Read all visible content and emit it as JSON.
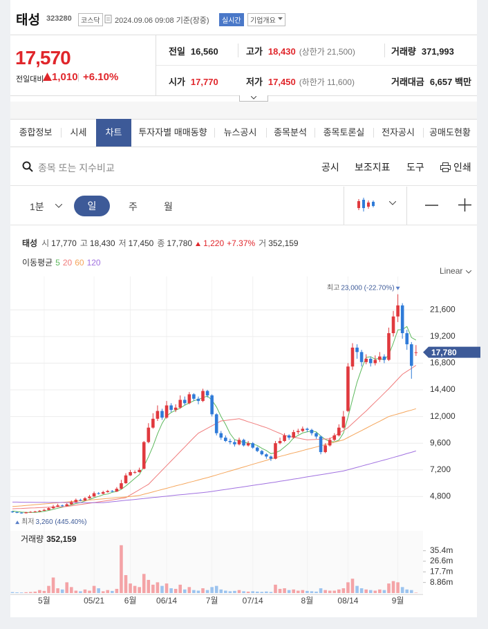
{
  "header": {
    "name": "태성",
    "code": "323280",
    "market": "코스닥",
    "timestamp": "2024.09.06 09:08 기준(장중)",
    "realtime": "실시간",
    "company_info": "기업개요"
  },
  "quote": {
    "price": "17,570",
    "change_label": "전일대비",
    "change": "1,010",
    "change_pct": "+6.10%",
    "stats": [
      [
        {
          "label": "전일",
          "value": "16,560",
          "color": "#222222"
        },
        {
          "label": "고가",
          "value": "18,430",
          "extra": "(상한가 21,500)",
          "color": "#e0262b"
        },
        {
          "label": "거래량",
          "value": "371,993",
          "color": "#222222"
        }
      ],
      [
        {
          "label": "시가",
          "value": "17,770",
          "color": "#e0262b"
        },
        {
          "label": "저가",
          "value": "17,450",
          "extra": "(하한가 11,600)",
          "color": "#e0262b"
        },
        {
          "label": "거래대금",
          "value": "6,657 백만",
          "color": "#222222"
        }
      ]
    ]
  },
  "tabs": [
    {
      "label": "종합정보"
    },
    {
      "label": "시세"
    },
    {
      "label": "차트",
      "selected": true
    },
    {
      "label": "투자자별 매매동향"
    },
    {
      "label": "뉴스공시"
    },
    {
      "label": "종목분석"
    },
    {
      "label": "종목토론실"
    },
    {
      "label": "전자공시"
    },
    {
      "label": "공매도현황"
    }
  ],
  "search": {
    "placeholder": "종목 또는 지수비교",
    "tools": [
      "공시",
      "보조지표",
      "도구",
      "인쇄"
    ]
  },
  "periods": [
    {
      "label": "1분"
    },
    {
      "label": "일",
      "selected": true
    },
    {
      "label": "주"
    },
    {
      "label": "월"
    }
  ],
  "chart_info": {
    "name": "태성",
    "items": [
      {
        "label": "시",
        "value": "17,770"
      },
      {
        "label": "고",
        "value": "18,430"
      },
      {
        "label": "저",
        "value": "17,450"
      },
      {
        "label": "종",
        "value": "17,780"
      }
    ],
    "change": "1,220",
    "change_pct": "+7.37%",
    "volume_label": "거",
    "volume": "352,159",
    "ma_label": "이동평균",
    "scale": "Linear"
  },
  "chart_data": {
    "type": "candlestick",
    "categories": [
      null,
      null,
      null,
      null,
      null,
      null,
      null,
      "5월",
      null,
      null,
      null,
      null,
      null,
      null,
      null,
      null,
      null,
      null,
      "05/21",
      null,
      null,
      null,
      null,
      null,
      null,
      null,
      "6월",
      null,
      null,
      null,
      null,
      null,
      null,
      null,
      "06/14",
      null,
      null,
      null,
      null,
      null,
      null,
      null,
      null,
      null,
      "7월",
      null,
      null,
      null,
      null,
      null,
      null,
      null,
      null,
      "07/14",
      null,
      null,
      null,
      null,
      null,
      null,
      null,
      null,
      null,
      null,
      null,
      "8월",
      null,
      null,
      null,
      null,
      null,
      null,
      null,
      null,
      "08/14",
      null,
      null,
      null,
      null,
      null,
      null,
      null,
      null,
      null,
      null,
      "9월",
      null,
      null,
      null,
      null
    ],
    "open": [
      3450,
      3400,
      3350,
      3300,
      3380,
      3420,
      3450,
      3520,
      3600,
      3750,
      3900,
      4000,
      3950,
      4100,
      4300,
      4500,
      4450,
      4650,
      4800,
      5100,
      5050,
      5200,
      5300,
      5250,
      5500,
      6000,
      6700,
      7000,
      7000,
      7300,
      9700,
      11000,
      11800,
      12500,
      11900,
      13000,
      12600,
      12800,
      13500,
      13200,
      14000,
      13600,
      13400,
      14300,
      13900,
      12200,
      10500,
      10100,
      9800,
      9700,
      9500,
      9900,
      9400,
      9600,
      9200,
      8900,
      8600,
      8400,
      8200,
      9600,
      9800,
      10300,
      10100,
      10600,
      10700,
      10900,
      10800,
      10500,
      10200,
      8800,
      9400,
      9900,
      10300,
      11000,
      12500,
      16500,
      18200,
      17800,
      16900,
      17200,
      16800,
      17100,
      17400,
      17100,
      19500,
      21000,
      22000,
      19500,
      18500,
      17770
    ],
    "high": [
      3500,
      3450,
      3400,
      3420,
      3480,
      3520,
      3580,
      3680,
      3820,
      4050,
      4150,
      4080,
      4200,
      4450,
      4620,
      4600,
      4750,
      4950,
      5250,
      5200,
      5320,
      5400,
      5380,
      5650,
      6300,
      6900,
      7200,
      7150,
      7400,
      9800,
      11400,
      12300,
      13000,
      12700,
      13400,
      13200,
      13100,
      13900,
      13800,
      14200,
      14100,
      13800,
      14500,
      14400,
      14000,
      12300,
      10700,
      10300,
      10000,
      9900,
      10100,
      10000,
      9800,
      9700,
      9300,
      9000,
      8700,
      8500,
      9800,
      10100,
      10500,
      10400,
      10800,
      10900,
      11100,
      11000,
      10900,
      10600,
      10300,
      9600,
      10100,
      10500,
      11300,
      12500,
      16800,
      18600,
      18500,
      18000,
      17600,
      17400,
      17500,
      17800,
      17600,
      20000,
      21500,
      23000,
      22200,
      19800,
      18700,
      18430
    ],
    "low": [
      3330,
      3300,
      3260,
      3280,
      3350,
      3400,
      3420,
      3500,
      3580,
      3700,
      3850,
      3880,
      3920,
      4050,
      4250,
      4380,
      4400,
      4600,
      4780,
      4980,
      5000,
      5150,
      5180,
      5220,
      5450,
      5950,
      6650,
      6850,
      6950,
      7250,
      9600,
      10900,
      11600,
      11700,
      11800,
      12400,
      12400,
      12700,
      13000,
      13100,
      13400,
      13100,
      13300,
      13700,
      12000,
      10300,
      9900,
      9700,
      9500,
      9300,
      9400,
      9300,
      9300,
      9100,
      8800,
      8500,
      8200,
      8000,
      8150,
      9500,
      9700,
      9900,
      10000,
      10400,
      10600,
      10600,
      10300,
      10000,
      8600,
      8700,
      9300,
      9800,
      10200,
      10900,
      12400,
      16200,
      17200,
      16500,
      16700,
      16500,
      16600,
      16900,
      16800,
      17000,
      19200,
      20500,
      19000,
      18000,
      15400,
      17450
    ],
    "close": [
      3400,
      3350,
      3300,
      3380,
      3420,
      3450,
      3520,
      3600,
      3750,
      3900,
      4000,
      3950,
      4100,
      4300,
      4500,
      4450,
      4650,
      4800,
      5100,
      5050,
      5200,
      5300,
      5250,
      5500,
      6000,
      6700,
      7000,
      7000,
      7200,
      9700,
      11000,
      11800,
      12500,
      11900,
      13000,
      12600,
      12800,
      13500,
      13200,
      14000,
      13600,
      13400,
      14300,
      13900,
      12200,
      10500,
      10100,
      9800,
      9700,
      9500,
      9900,
      9400,
      9600,
      9200,
      8900,
      8600,
      8400,
      8200,
      9600,
      9800,
      10300,
      10100,
      10600,
      10700,
      10900,
      10800,
      10500,
      10200,
      8800,
      9400,
      9900,
      10300,
      11000,
      12000,
      16500,
      18200,
      17800,
      16900,
      17200,
      16800,
      17100,
      17400,
      17100,
      19500,
      21000,
      22000,
      19500,
      18500,
      16560,
      17780
    ],
    "up_color": "#e0393e",
    "down_color": "#2f7bd8",
    "series": [
      {
        "name": "5",
        "color": "#5cb85c",
        "values": [
          3500,
          3450,
          3400,
          3380,
          3370,
          3380,
          3410,
          3470,
          3550,
          3650,
          3750,
          3840,
          3940,
          4050,
          4170,
          4260,
          4400,
          4540,
          4700,
          4810,
          4960,
          5030,
          5180,
          5260,
          5450,
          5750,
          6090,
          6440,
          6780,
          7520,
          8380,
          9340,
          10440,
          11380,
          12040,
          12360,
          12560,
          12760,
          13020,
          13220,
          13420,
          13540,
          13700,
          13840,
          13480,
          12860,
          12000,
          11300,
          10460,
          9920,
          9800,
          9660,
          9620,
          9520,
          9400,
          9140,
          8940,
          8660,
          8740,
          8920,
          9260,
          9600,
          10080,
          10300,
          10520,
          10620,
          10700,
          10620,
          10240,
          9940,
          9760,
          9720,
          9880,
          10520,
          11940,
          13540,
          15100,
          16280,
          17320,
          17380,
          17160,
          17240,
          17080,
          17580,
          18600,
          19800,
          19820,
          20100,
          19110,
          18870
        ]
      },
      {
        "name": "20",
        "color": "#f07b7b",
        "values": [
          3700,
          3720,
          3730,
          3750,
          3770,
          3780,
          3800,
          3820,
          3840,
          3860,
          3870,
          3880,
          3900,
          3960,
          4020,
          4080,
          4140,
          4200,
          4260,
          4320,
          4380,
          4440,
          4500,
          4560,
          4630,
          4700,
          4940,
          5180,
          5420,
          5660,
          5900,
          6320,
          6740,
          7160,
          7580,
          8000,
          8420,
          8840,
          9260,
          9680,
          10100,
          10500,
          10720,
          10940,
          11160,
          11380,
          11600,
          11650,
          11700,
          11750,
          11800,
          11670,
          11530,
          11400,
          11270,
          11130,
          11000,
          10830,
          10650,
          10480,
          10300,
          10220,
          10140,
          10060,
          9980,
          9900,
          9920,
          9940,
          9960,
          9980,
          10000,
          10250,
          10500,
          10750,
          11000,
          11380,
          11750,
          12130,
          12500,
          12900,
          13300,
          13700,
          14100,
          14500,
          14930,
          15370,
          15800,
          16070,
          16330,
          16600
        ]
      },
      {
        "name": "60",
        "color": "#f5a55a",
        "values": [
          3900,
          3930,
          3960,
          4000,
          4030,
          4070,
          4100,
          4140,
          4170,
          4210,
          4240,
          4280,
          4310,
          4350,
          4380,
          4420,
          4450,
          4490,
          4520,
          4560,
          4590,
          4630,
          4660,
          4700,
          4730,
          4770,
          4800,
          4850,
          4900,
          5010,
          5110,
          5220,
          5330,
          5440,
          5540,
          5650,
          5760,
          5860,
          5970,
          6080,
          6180,
          6290,
          6400,
          6500,
          6620,
          6740,
          6860,
          6980,
          7100,
          7220,
          7340,
          7460,
          7580,
          7700,
          7820,
          7940,
          8060,
          8180,
          8300,
          8410,
          8510,
          8620,
          8730,
          8830,
          8940,
          9050,
          9150,
          9260,
          9370,
          9470,
          9580,
          9690,
          9790,
          9900,
          10110,
          10320,
          10530,
          10740,
          10950,
          11160,
          11370,
          11580,
          11790,
          12000,
          12120,
          12230,
          12350,
          12470,
          12580,
          12700
        ]
      },
      {
        "name": "120",
        "color": "#a070e0",
        "values": [
          4300,
          4300,
          4290,
          4290,
          4290,
          4280,
          4280,
          4280,
          4270,
          4270,
          4270,
          4270,
          4260,
          4260,
          4260,
          4260,
          4250,
          4250,
          4250,
          4250,
          4250,
          4290,
          4330,
          4370,
          4420,
          4460,
          4500,
          4540,
          4580,
          4620,
          4670,
          4710,
          4750,
          4790,
          4830,
          4880,
          4920,
          4960,
          5000,
          5040,
          5080,
          5120,
          5160,
          5200,
          5260,
          5320,
          5380,
          5440,
          5500,
          5560,
          5620,
          5680,
          5740,
          5800,
          5860,
          5920,
          5980,
          6040,
          6100,
          6170,
          6230,
          6300,
          6370,
          6430,
          6500,
          6570,
          6630,
          6700,
          6770,
          6830,
          6900,
          6970,
          7030,
          7100,
          7210,
          7320,
          7430,
          7540,
          7650,
          7760,
          7870,
          7980,
          8090,
          8200,
          8320,
          8430,
          8550,
          8670,
          8780,
          8900
        ]
      }
    ],
    "ylim": [
      1900,
      24600
    ],
    "yticks": [
      {
        "value": 4800,
        "label": "4,800"
      },
      {
        "value": 7200,
        "label": "7,200"
      },
      {
        "value": 9600,
        "label": "9,600"
      },
      {
        "value": 12000,
        "label": "12,000"
      },
      {
        "value": 14400,
        "label": "14,400"
      },
      {
        "value": 16800,
        "label": "16,800"
      },
      {
        "value": 19200,
        "label": "19,200"
      },
      {
        "value": 21600,
        "label": "21,600"
      }
    ],
    "grid": true,
    "max_annotation": {
      "label": "최고",
      "text": "23,000 (-22.70%)"
    },
    "min_annotation": {
      "label": "최저",
      "text": "3,260 (445.40%)"
    },
    "last_price_label": "17,780",
    "volume": {
      "label": "거래량",
      "value_label": "352,159",
      "values": [
        800000,
        600000,
        500000,
        700000,
        900000,
        1200000,
        2500000,
        1800000,
        6000000,
        13000000,
        4000000,
        3000000,
        9000000,
        5000000,
        2000000,
        1500000,
        3000000,
        2000000,
        6000000,
        4000000,
        1500000,
        2500000,
        1800000,
        3500000,
        40000000,
        15000000,
        8000000,
        6000000,
        5000000,
        16000000,
        11000000,
        7000000,
        9000000,
        6000000,
        8000000,
        4000000,
        3500000,
        7000000,
        3000000,
        5000000,
        2500000,
        2000000,
        4000000,
        2500000,
        5000000,
        6000000,
        3000000,
        2000000,
        1500000,
        1800000,
        2500000,
        1500000,
        1200000,
        1500000,
        1200000,
        1000000,
        1300000,
        900000,
        7000000,
        3500000,
        4000000,
        2500000,
        3000000,
        2000000,
        2500000,
        1800000,
        1500000,
        1200000,
        4000000,
        2500000,
        2000000,
        2000000,
        3000000,
        4000000,
        9000000,
        12000000,
        6000000,
        4000000,
        3000000,
        2500000,
        2000000,
        3000000,
        2500000,
        8000000,
        10000000,
        9000000,
        5000000,
        3000000,
        2500000,
        352159
      ],
      "up_color": "#f4a3a6",
      "down_color": "#9cc3ee",
      "ylim": [
        0,
        52000000
      ],
      "yticks": [
        {
          "value": 8860000,
          "label": "8.86m"
        },
        {
          "value": 17700000,
          "label": "17.7m"
        },
        {
          "value": 26600000,
          "label": "26.6m"
        },
        {
          "value": 35400000,
          "label": "35.4m"
        }
      ]
    }
  }
}
